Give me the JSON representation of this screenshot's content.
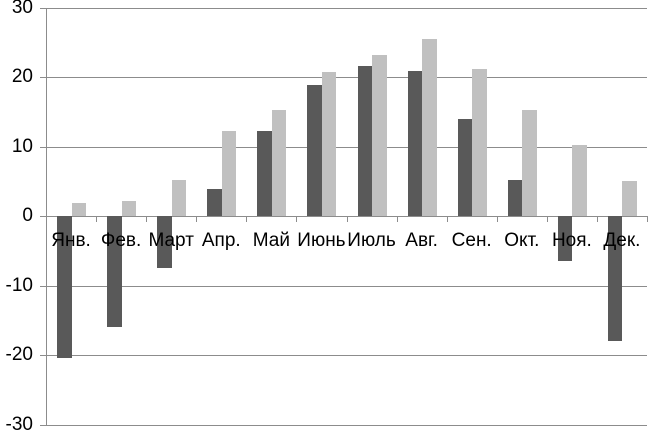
{
  "chart_data": {
    "type": "bar",
    "title": "",
    "xlabel": "",
    "ylabel": "",
    "categories": [
      "Янв.",
      "Фев.",
      "Март",
      "Апр.",
      "Май",
      "Июнь",
      "Июль",
      "Авг.",
      "Сен.",
      "Окт.",
      "Ноя.",
      "Дек."
    ],
    "series": [
      {
        "name": "dark-gray-series",
        "color": "#595959",
        "values": [
          -20.5,
          -16,
          -7.5,
          3.9,
          12.2,
          18.8,
          21.6,
          20.9,
          14,
          5.2,
          -6.5,
          -18
        ]
      },
      {
        "name": "light-gray-series",
        "color": "#C0C0C0",
        "values": [
          1.9,
          2.1,
          5.2,
          12.3,
          15.2,
          20.7,
          23.1,
          25.4,
          21.1,
          15.2,
          10.2,
          5.1
        ]
      }
    ],
    "y_axis": {
      "min": -30,
      "max": 30,
      "step": 10,
      "tick_labels": [
        "30",
        "20",
        "10",
        "0",
        "-10",
        "-20",
        "-30"
      ]
    },
    "x_axis": {
      "label_position": "next-to-zero-axis",
      "tick_marks": true
    },
    "grid": true,
    "legend": false,
    "colors": {
      "gridline": "#8C8C8C",
      "axis": "#8C8C8C",
      "text": "#000000",
      "background": "#FFFFFF"
    }
  }
}
